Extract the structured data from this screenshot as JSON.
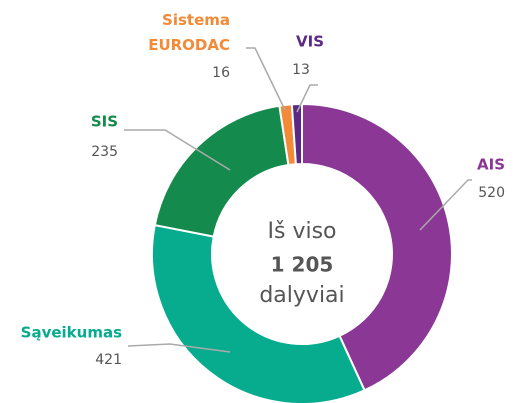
{
  "chart_data": {
    "type": "donut",
    "categories": [
      "AIS",
      "Sąveikumas",
      "SIS",
      "Sistema EURODAC",
      "VIS"
    ],
    "values": [
      520,
      421,
      235,
      16,
      13
    ],
    "colors": [
      "#8a3795",
      "#07ab8e",
      "#148a4c",
      "#f28a37",
      "#5c2a86"
    ],
    "center_lines": [
      "Iš viso",
      "dalyviai"
    ],
    "total": {
      "value": 1205,
      "label": "1 205"
    }
  }
}
